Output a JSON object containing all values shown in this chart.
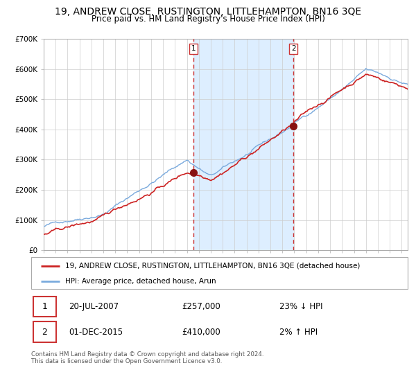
{
  "title": "19, ANDREW CLOSE, RUSTINGTON, LITTLEHAMPTON, BN16 3QE",
  "subtitle": "Price paid vs. HM Land Registry's House Price Index (HPI)",
  "legend_line1": "19, ANDREW CLOSE, RUSTINGTON, LITTLEHAMPTON, BN16 3QE (detached house)",
  "legend_line2": "HPI: Average price, detached house, Arun",
  "purchase1_date": "20-JUL-2007",
  "purchase1_price": 257000,
  "purchase1_price_str": "£257,000",
  "purchase1_pct": "23% ↓ HPI",
  "purchase2_date": "01-DEC-2015",
  "purchase2_price": 410000,
  "purchase2_price_str": "£410,000",
  "purchase2_pct": "2% ↑ HPI",
  "footer": "Contains HM Land Registry data © Crown copyright and database right 2024.\nThis data is licensed under the Open Government Licence v3.0.",
  "ylim": [
    0,
    700000
  ],
  "yticks": [
    0,
    100000,
    200000,
    300000,
    400000,
    500000,
    600000,
    700000
  ],
  "ytick_labels": [
    "£0",
    "£100K",
    "£200K",
    "£300K",
    "£400K",
    "£500K",
    "£600K",
    "£700K"
  ],
  "hpi_color": "#7aaadd",
  "price_color": "#cc2222",
  "dot_color": "#881111",
  "vline_color": "#cc3333",
  "shade_color": "#ddeeff",
  "grid_color": "#cccccc",
  "background_color": "#ffffff",
  "purchase1_x": 2007.55,
  "purchase2_x": 2015.92,
  "xmin": 1995,
  "xmax": 2025.5,
  "title_fontsize": 10,
  "subtitle_fontsize": 8.5
}
